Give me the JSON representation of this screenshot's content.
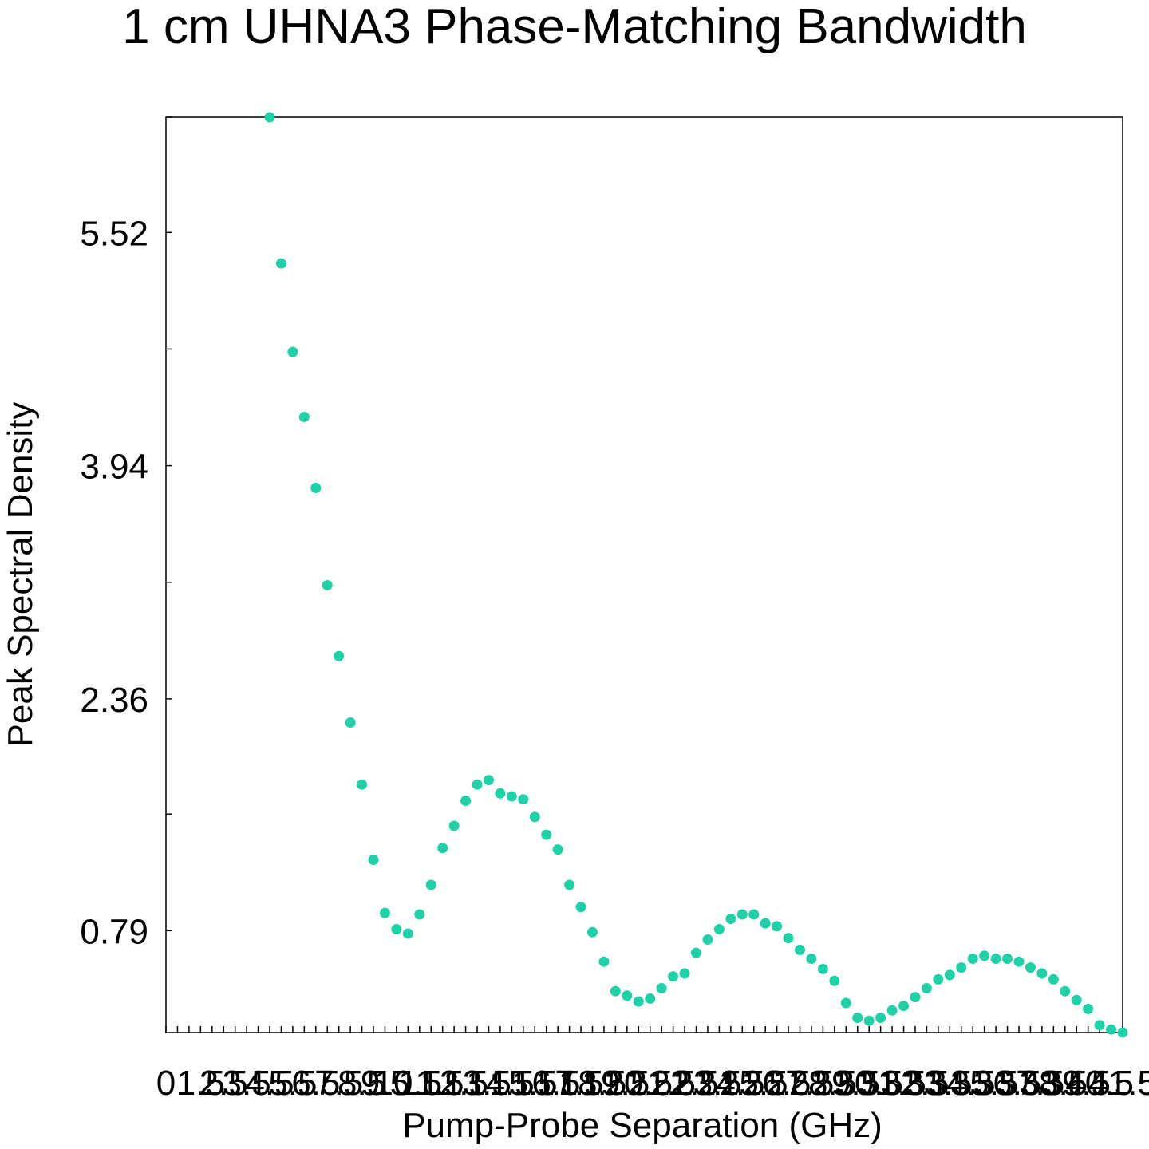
{
  "chart_data": {
    "type": "scatter",
    "title": "1 cm UHNA3 Phase-Matching Bandwidth",
    "xlabel": "Pump-Probe Separation (GHz)",
    "ylabel": "Peak Spectral Density",
    "xlim": [
      0,
      41.5
    ],
    "ylim": [
      0.1,
      6.3
    ],
    "x_ticks": [
      0,
      0.5,
      1,
      1.5,
      2,
      2.5,
      3,
      3.5,
      4,
      4.5,
      5,
      5.5,
      6,
      6.5,
      7,
      7.5,
      8,
      8.5,
      9,
      9.5,
      10,
      10.5,
      11,
      11.5,
      12,
      12.5,
      13,
      13.5,
      14,
      14.5,
      15,
      15.5,
      16,
      16.5,
      17,
      17.5,
      18,
      18.5,
      19,
      19.5,
      20,
      20.5,
      21,
      21.5,
      22,
      22.5,
      23,
      23.5,
      24,
      24.5,
      25,
      25.5,
      26,
      26.5,
      27,
      27.5,
      28,
      28.5,
      29,
      29.5,
      30,
      30.5,
      31,
      31.5,
      32,
      32.5,
      33,
      33.5,
      34,
      34.5,
      35,
      35.5,
      36,
      36.5,
      37,
      37.5,
      38,
      38.5,
      39,
      39.5,
      40,
      40.5,
      41,
      41.5
    ],
    "x_tick_labels": [
      "0",
      "1.5",
      "2.5",
      "3.5",
      "4.5",
      "5.5",
      "6.5",
      "7.5",
      "8.5",
      "9.5",
      "10.5",
      "11.5",
      "12.5",
      "13.5",
      "14.5",
      "15.5",
      "16.5",
      "17.5",
      "18.5",
      "19.5",
      "20.5",
      "21.5",
      "22.5",
      "23.5",
      "24.5",
      "25.5",
      "26.5",
      "27.5",
      "28.5",
      "29.5",
      "30.5",
      "31.5",
      "32.5",
      "33.5",
      "34.5",
      "35.5",
      "36.5",
      "37.5",
      "38.5",
      "39.5",
      "40.5",
      "41.5"
    ],
    "x_tick_label_values": [
      0,
      1.5,
      2.5,
      3.5,
      4.5,
      5.5,
      6.5,
      7.5,
      8.5,
      9.5,
      10.5,
      11.5,
      12.5,
      13.5,
      14.5,
      15.5,
      16.5,
      17.5,
      18.5,
      19.5,
      20.5,
      21.5,
      22.5,
      23.5,
      24.5,
      25.5,
      26.5,
      27.5,
      28.5,
      29.5,
      30.5,
      31.5,
      32.5,
      33.5,
      34.5,
      35.5,
      36.5,
      37.5,
      38.5,
      39.5,
      40.5,
      41.5
    ],
    "y_ticks": [
      0.79,
      1.58,
      2.36,
      3.15,
      3.94,
      4.73,
      5.52,
      6.3
    ],
    "y_tick_labels": [
      "0.79",
      "2.36",
      "3.94",
      "5.52"
    ],
    "y_tick_label_values": [
      0.79,
      2.36,
      3.94,
      5.52
    ],
    "grid": false,
    "series": [
      {
        "color": "#1fd1a6",
        "x": [
          4.5,
          5,
          5.5,
          6,
          6.5,
          7,
          7.5,
          8,
          8.5,
          9,
          9.5,
          10,
          10.5,
          11,
          11.5,
          12,
          12.5,
          13,
          13.5,
          14,
          14.5,
          15,
          15.5,
          16,
          16.5,
          17,
          17.5,
          18,
          18.5,
          19,
          19.5,
          20,
          20.5,
          21,
          21.5,
          22,
          22.5,
          23,
          23.5,
          24,
          24.5,
          25,
          25.5,
          26,
          26.5,
          27,
          27.5,
          28,
          28.5,
          29,
          29.5,
          30,
          30.5,
          31,
          31.5,
          32,
          32.5,
          33,
          33.5,
          34,
          34.5,
          35,
          35.5,
          36,
          36.5,
          37,
          37.5,
          38,
          38.5,
          39,
          39.5,
          40,
          40.5,
          41,
          41.5
        ],
        "y": [
          6.3,
          5.31,
          4.71,
          4.27,
          3.79,
          3.13,
          2.65,
          2.2,
          1.78,
          1.27,
          0.91,
          0.8,
          0.77,
          0.9,
          1.1,
          1.35,
          1.5,
          1.67,
          1.78,
          1.81,
          1.72,
          1.7,
          1.68,
          1.56,
          1.44,
          1.34,
          1.1,
          0.95,
          0.78,
          0.58,
          0.38,
          0.35,
          0.31,
          0.33,
          0.4,
          0.48,
          0.5,
          0.64,
          0.73,
          0.8,
          0.87,
          0.9,
          0.9,
          0.84,
          0.82,
          0.74,
          0.66,
          0.6,
          0.53,
          0.45,
          0.3,
          0.2,
          0.18,
          0.2,
          0.25,
          0.28,
          0.34,
          0.4,
          0.46,
          0.49,
          0.54,
          0.6,
          0.62,
          0.6,
          0.6,
          0.58,
          0.54,
          0.5,
          0.46,
          0.38,
          0.32,
          0.26,
          0.15,
          0.12,
          0.1
        ]
      }
    ]
  }
}
